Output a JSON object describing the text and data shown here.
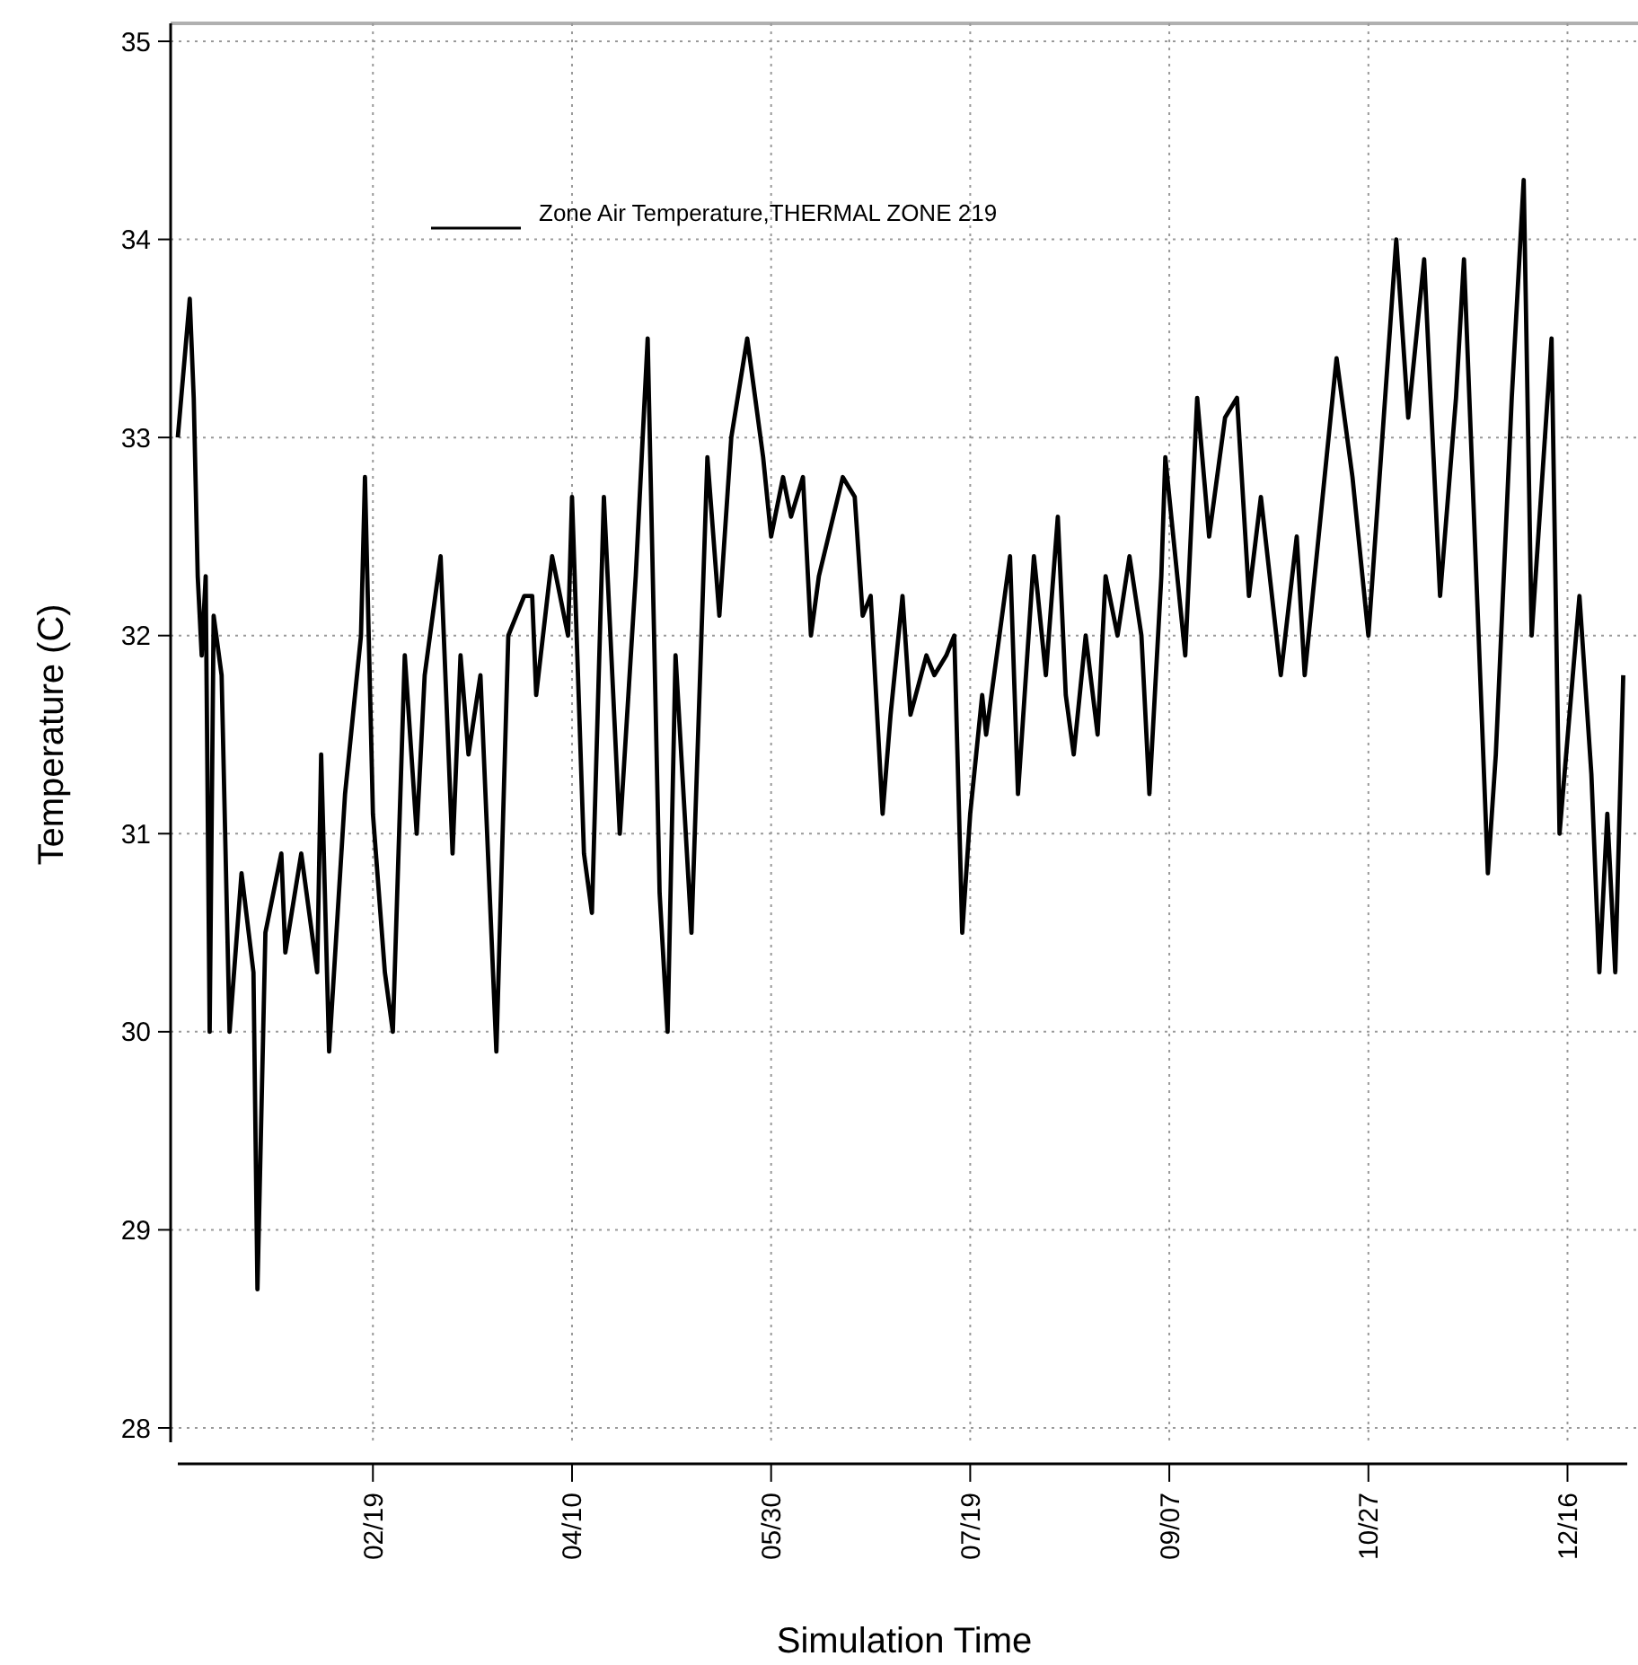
{
  "chart_data": {
    "type": "line",
    "xlabel": "Simulation Time",
    "ylabel": "Temperature (C)",
    "x": [
      "--01-01",
      "--01-04",
      "--01-05",
      "--01-06",
      "--01-07",
      "--01-08",
      "--01-09",
      "--01-10",
      "--01-12",
      "--01-14",
      "--01-17",
      "--01-20",
      "--01-21",
      "--01-23",
      "--01-27",
      "--01-28",
      "--02-01",
      "--02-05",
      "--02-06",
      "--02-08",
      "--02-12",
      "--02-16",
      "--02-17",
      "--02-19",
      "--02-22",
      "--02-24",
      "--02-27",
      "--03-02",
      "--03-04",
      "--03-08",
      "--03-11",
      "--03-13",
      "--03-15",
      "--03-18",
      "--03-22",
      "--03-25",
      "--03-29",
      "--03-31",
      "--04-01",
      "--04-05",
      "--04-09",
      "--04-10",
      "--04-13",
      "--04-15",
      "--04-18",
      "--04-22",
      "--04-26",
      "--04-29",
      "--05-02",
      "--05-04",
      "--05-06",
      "--05-10",
      "--05-14",
      "--05-17",
      "--05-20",
      "--05-24",
      "--05-28",
      "--05-30",
      "--06-02",
      "--06-04",
      "--06-07",
      "--06-09",
      "--06-11",
      "--06-17",
      "--06-20",
      "--06-22",
      "--06-24",
      "--06-27",
      "--06-29",
      "--07-02",
      "--07-04",
      "--07-08",
      "--07-10",
      "--07-13",
      "--07-15",
      "--07-17",
      "--07-19",
      "--07-22",
      "--07-23",
      "--07-29",
      "--07-31",
      "--08-04",
      "--08-07",
      "--08-10",
      "--08-12",
      "--08-14",
      "--08-17",
      "--08-20",
      "--08-22",
      "--08-25",
      "--08-28",
      "--08-31",
      "--09-02",
      "--09-05",
      "--09-06",
      "--09-11",
      "--09-14",
      "--09-17",
      "--09-21",
      "--09-24",
      "--09-27",
      "--09-30",
      "--10-05",
      "--10-09",
      "--10-11",
      "--10-19",
      "--10-23",
      "--10-27",
      "--11-03",
      "--11-06",
      "--11-10",
      "--11-14",
      "--11-18",
      "--11-20",
      "--11-26",
      "--11-28",
      "--12-02",
      "--12-05",
      "--12-07",
      "--12-12",
      "--12-14",
      "--12-19",
      "--12-22",
      "--12-24",
      "--12-26",
      "--12-28",
      "--12-30"
    ],
    "series": [
      {
        "name": "Zone Air Temperature,THERMAL ZONE 219",
        "color": "#000000",
        "values": [
          33.0,
          33.7,
          33.2,
          32.3,
          31.9,
          32.3,
          30.0,
          32.1,
          31.8,
          30.0,
          30.8,
          30.3,
          28.7,
          30.5,
          30.9,
          30.4,
          30.9,
          30.3,
          31.4,
          29.9,
          31.2,
          32.0,
          32.8,
          31.1,
          30.3,
          30.0,
          31.9,
          31.0,
          31.8,
          32.4,
          30.9,
          31.9,
          31.4,
          31.8,
          29.9,
          32.0,
          32.2,
          32.2,
          31.7,
          32.4,
          32.0,
          32.7,
          30.9,
          30.6,
          32.7,
          31.0,
          32.3,
          33.5,
          30.7,
          30.0,
          31.9,
          30.5,
          32.9,
          32.1,
          33.0,
          33.5,
          32.9,
          32.5,
          32.8,
          32.6,
          32.8,
          32.0,
          32.3,
          32.8,
          32.7,
          32.1,
          32.2,
          31.1,
          31.6,
          32.2,
          31.6,
          31.9,
          31.8,
          31.9,
          32.0,
          30.5,
          31.1,
          31.7,
          31.5,
          32.4,
          31.2,
          32.4,
          31.8,
          32.6,
          31.7,
          31.4,
          32.0,
          31.5,
          32.3,
          32.0,
          32.4,
          32.0,
          31.2,
          32.3,
          32.9,
          31.9,
          33.2,
          32.5,
          33.1,
          33.2,
          32.2,
          32.7,
          31.8,
          32.5,
          31.8,
          33.4,
          32.8,
          32.0,
          34.0,
          33.1,
          33.9,
          32.2,
          33.2,
          33.9,
          30.8,
          31.4,
          33.2,
          34.3,
          32.0,
          33.5,
          31.0,
          32.2,
          31.3,
          30.3,
          31.1,
          30.3,
          31.8
        ]
      }
    ],
    "xlim": [
      "--01-01",
      "--12-31"
    ],
    "xticks": [
      {
        "value": "--02-19",
        "label": "02/19"
      },
      {
        "value": "--04-10",
        "label": "04/10"
      },
      {
        "value": "--05-30",
        "label": "05/30"
      },
      {
        "value": "--07-19",
        "label": "07/19"
      },
      {
        "value": "--09-07",
        "label": "09/07"
      },
      {
        "value": "--10-27",
        "label": "10/27"
      },
      {
        "value": "--12-16",
        "label": "12/16"
      }
    ],
    "ylim": [
      28,
      35
    ],
    "yticks": [
      28,
      29,
      30,
      31,
      32,
      33,
      34,
      35
    ],
    "grid": true,
    "legend": "top",
    "line_style": "solid"
  }
}
